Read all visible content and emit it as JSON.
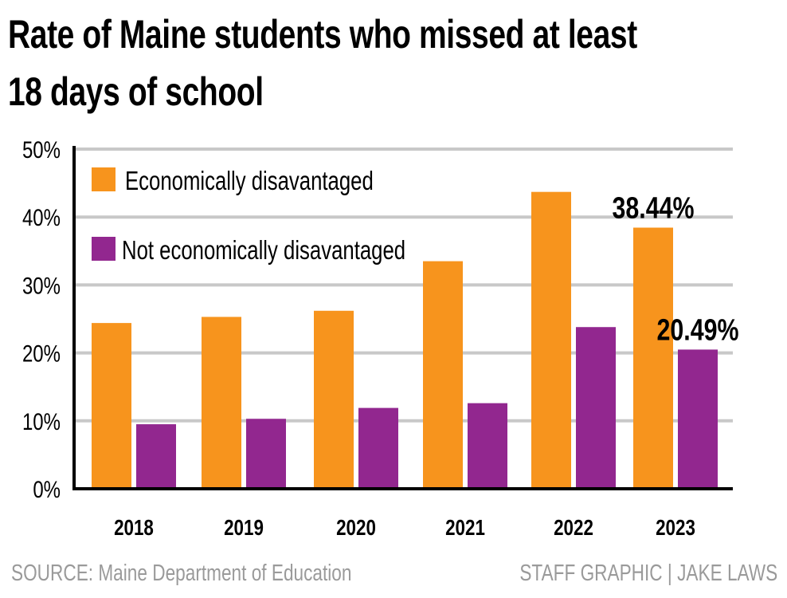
{
  "title_line1": "Rate of Maine students who missed at least",
  "title_line2": "18 days of school",
  "source": "SOURCE: Maine Department of Education",
  "credit": "STAFF GRAPHIC | JAKE LAWS",
  "colors": {
    "econ": "#F7941D",
    "not_econ": "#92278F",
    "grid": "#c8c8c8"
  },
  "chart_data": {
    "type": "bar",
    "title": "Rate of Maine students who missed at least 18 days of school",
    "xlabel": "",
    "ylabel": "",
    "categories": [
      "2018",
      "2019",
      "2020",
      "2021",
      "2022",
      "2023"
    ],
    "series": [
      {
        "name": "Economically disavantaged",
        "values": [
          24.4,
          25.3,
          26.2,
          33.5,
          43.7,
          38.44
        ]
      },
      {
        "name": "Not economically disavantaged",
        "values": [
          9.5,
          10.3,
          11.9,
          12.6,
          23.8,
          20.49
        ]
      }
    ],
    "data_labels": [
      {
        "series": 0,
        "index": 5,
        "text": "38.44%"
      },
      {
        "series": 1,
        "index": 5,
        "text": "20.49%"
      }
    ],
    "ylim": [
      0,
      50
    ],
    "yticks": [
      "0%",
      "10%",
      "20%",
      "30%",
      "40%",
      "50%"
    ],
    "grid": true,
    "legend": "top-left"
  }
}
